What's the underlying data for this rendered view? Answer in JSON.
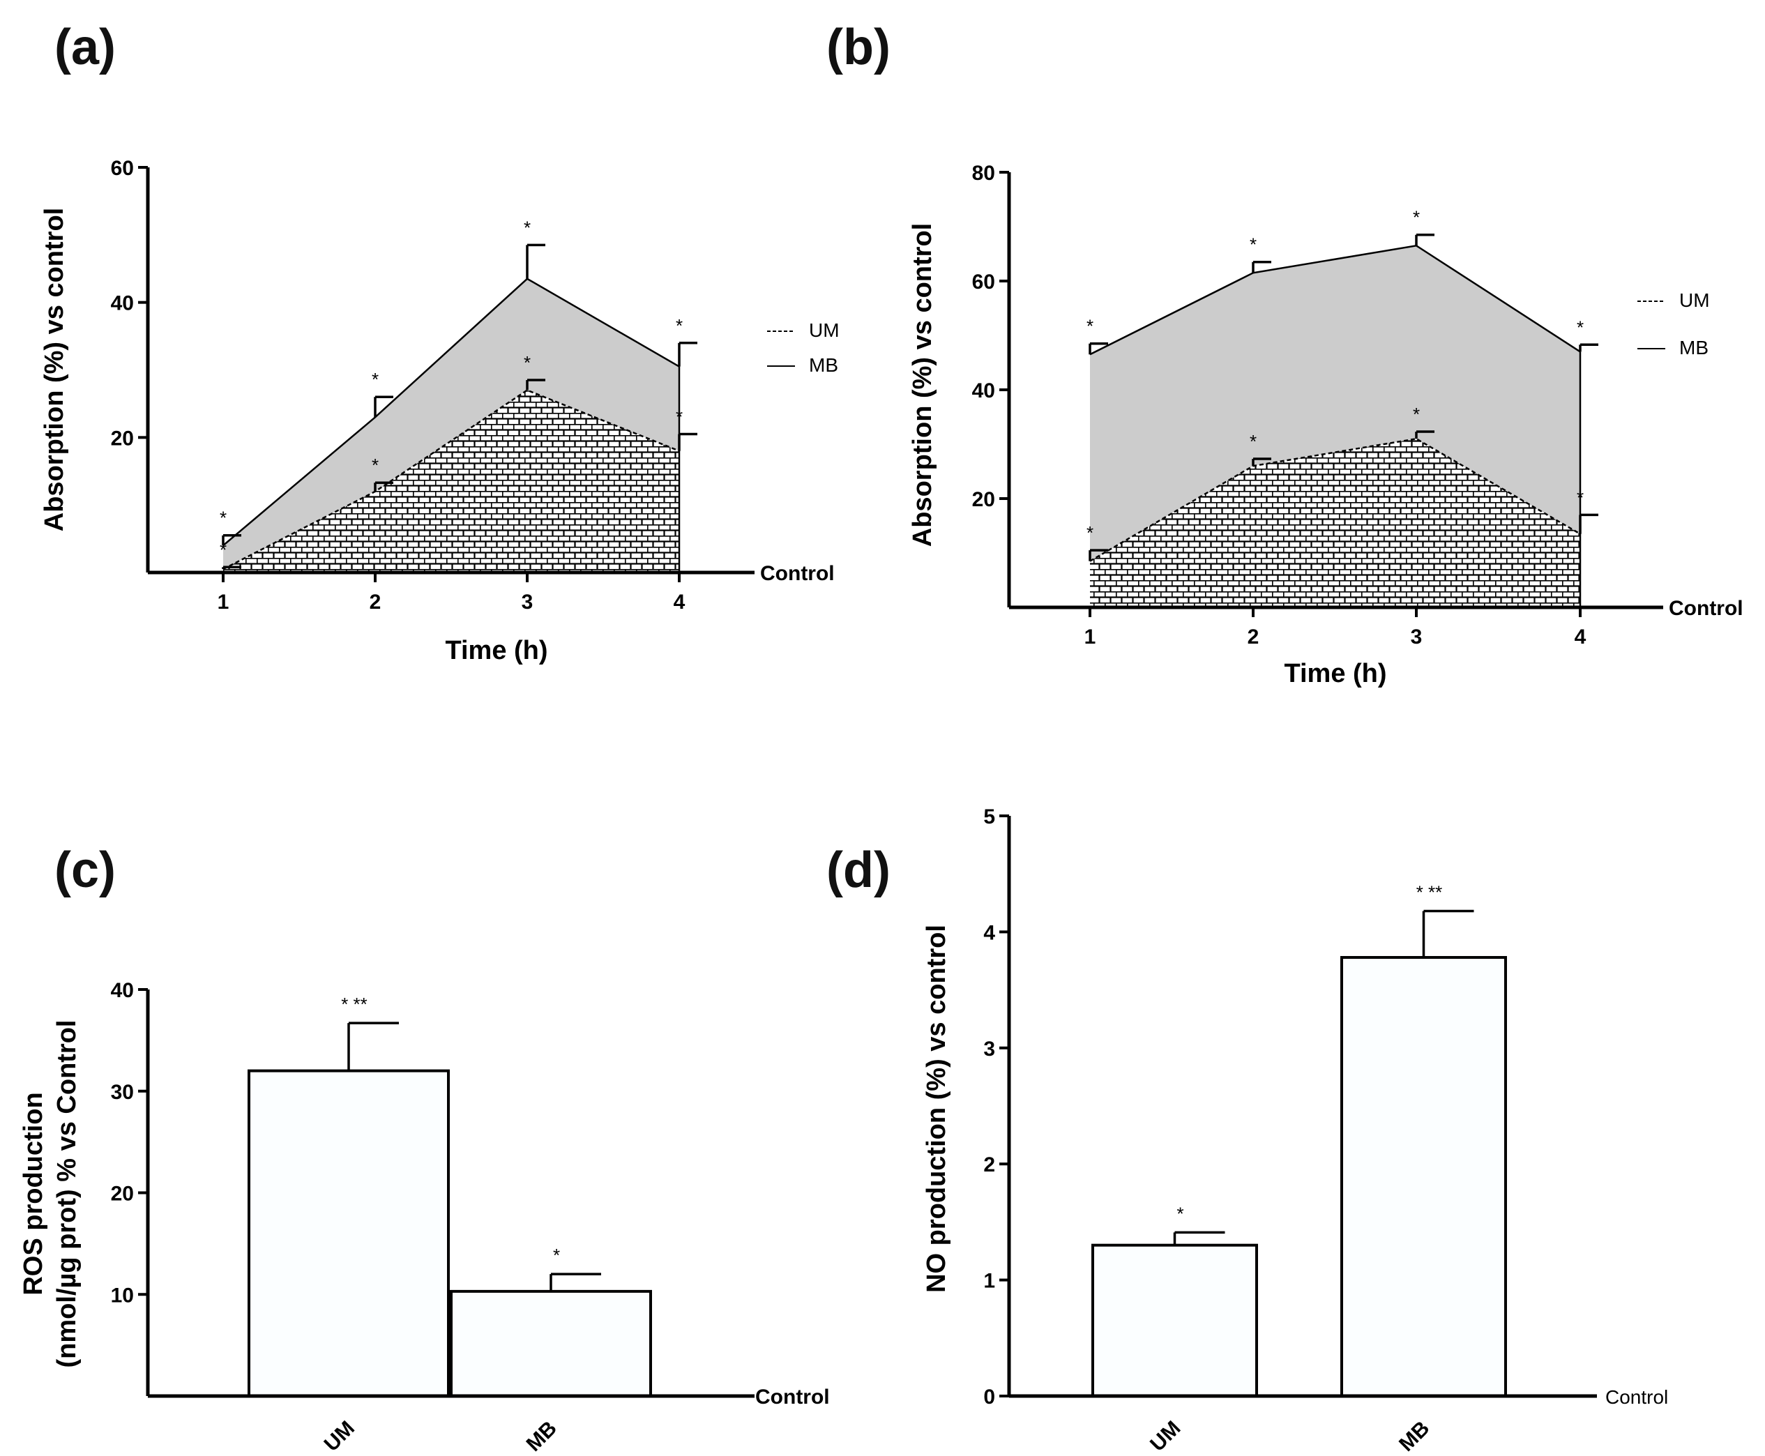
{
  "panels": {
    "a": "(a)",
    "b": "(b)",
    "c": "(c)",
    "d": "(d)"
  },
  "colors": {
    "mb_fill": "#cccccc",
    "um_fill": "#ffffff",
    "bar_fill": "#fbfeff"
  },
  "chart_data": [
    {
      "id": "a",
      "type": "area",
      "title": "",
      "xlabel": "Time (h)",
      "ylabel": "Absorption (%) vs control",
      "baseline_label": "Control",
      "categories": [
        "1",
        "2",
        "3",
        "4"
      ],
      "yticks": [
        20,
        40,
        60
      ],
      "ylim": [
        0,
        60
      ],
      "series": [
        {
          "name": "MB",
          "style": "solid",
          "values": [
            4,
            23,
            43.5,
            30.5
          ],
          "errors": [
            1.5,
            3,
            5,
            3.5
          ]
        },
        {
          "name": "UM",
          "style": "dashed",
          "values": [
            0.5,
            12,
            27,
            18
          ],
          "errors": [
            0.3,
            1.3,
            1.5,
            2.5
          ]
        }
      ],
      "annotations": [
        "*",
        "*",
        "*",
        "*",
        "*",
        "*",
        "*",
        "*"
      ]
    },
    {
      "id": "b",
      "type": "area",
      "title": "",
      "xlabel": "Time (h)",
      "ylabel": "Absorption (%) vs control",
      "baseline_label": "Control",
      "categories": [
        "1",
        "2",
        "3",
        "4"
      ],
      "yticks": [
        20,
        40,
        60,
        80
      ],
      "ylim": [
        0,
        80
      ],
      "series": [
        {
          "name": "MB",
          "style": "solid",
          "values": [
            46.5,
            61.5,
            66.5,
            47
          ],
          "errors": [
            2,
            2,
            2,
            1.3
          ]
        },
        {
          "name": "UM",
          "style": "dashed",
          "values": [
            8.5,
            26,
            31,
            13.5
          ],
          "errors": [
            2,
            1.3,
            1.3,
            3.5
          ]
        }
      ],
      "annotations": [
        "*",
        "*",
        "*",
        "*",
        "*",
        "*",
        "*",
        "*"
      ]
    },
    {
      "id": "c",
      "type": "bar",
      "title": "",
      "xlabel": "",
      "ylabel_line1": "ROS production",
      "ylabel_line2": "(nmol/µg prot) % vs Control",
      "baseline_label": "Control",
      "categories": [
        "UM",
        "MB"
      ],
      "values": [
        32,
        10.3
      ],
      "errors": [
        4.7,
        1.7
      ],
      "sig": [
        "* **",
        "*"
      ],
      "yticks": [
        10,
        20,
        30,
        40
      ],
      "ylim": [
        0,
        40
      ]
    },
    {
      "id": "d",
      "type": "bar",
      "title": "",
      "xlabel": "",
      "ylabel": "NO production (%)  vs control",
      "baseline_label": "Control",
      "categories": [
        "UM",
        "MB"
      ],
      "values": [
        1.3,
        3.78
      ],
      "errors": [
        0.11,
        0.4
      ],
      "sig": [
        "*",
        "* **"
      ],
      "yticks": [
        0,
        1,
        2,
        3,
        4,
        5
      ],
      "ylim": [
        0,
        5
      ]
    }
  ]
}
